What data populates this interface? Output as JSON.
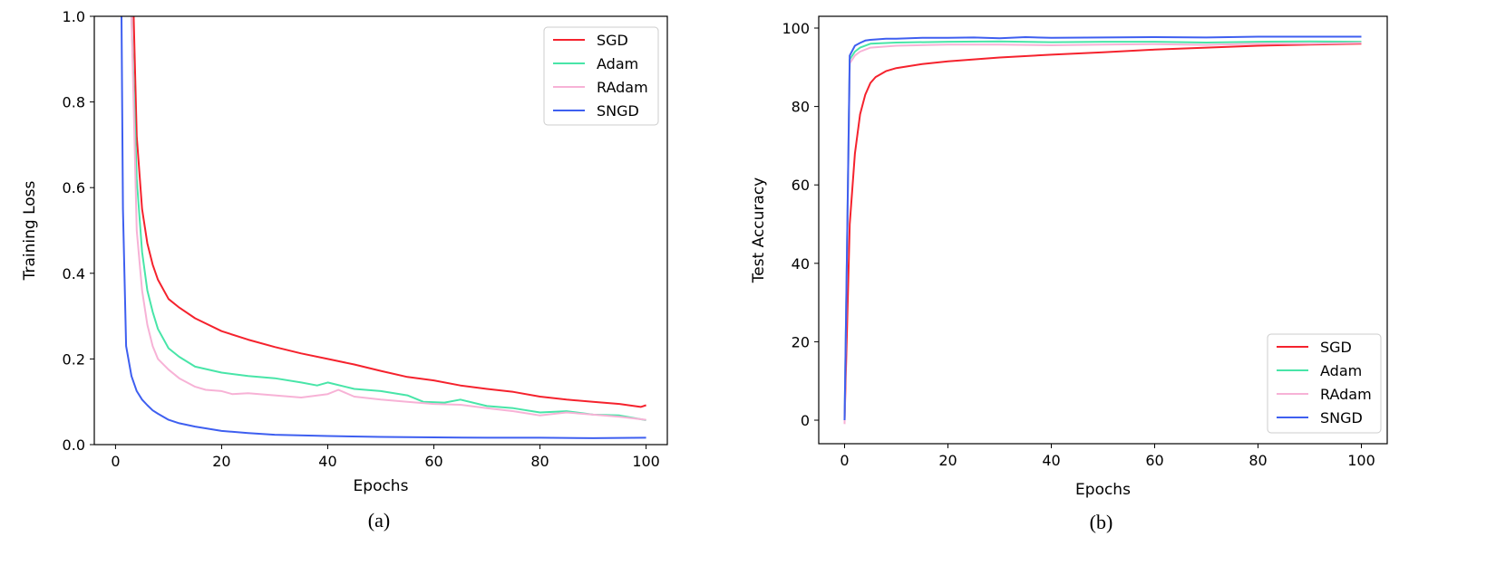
{
  "colors": {
    "SGD": "#f5222d",
    "Adam": "#48e5a8",
    "RAdam": "#f7b2d6",
    "SNGD": "#3e5ff0"
  },
  "chart_data": [
    {
      "type": "line",
      "panel_label": "(a)",
      "xlabel": "Epochs",
      "ylabel": "Training Loss",
      "xlim": [
        -4,
        104
      ],
      "ylim": [
        0.0,
        1.0
      ],
      "xticks": [
        0,
        20,
        40,
        60,
        80,
        100
      ],
      "yticks": [
        0.0,
        0.2,
        0.4,
        0.6,
        0.8,
        1.0
      ],
      "xtick_labels": [
        "0",
        "20",
        "40",
        "60",
        "80",
        "100"
      ],
      "ytick_labels": [
        "0.0",
        "0.2",
        "0.4",
        "0.6",
        "0.8",
        "1.0"
      ],
      "legend_position": "top-right",
      "series": [
        {
          "name": "SGD",
          "x": [
            3,
            4,
            5,
            6,
            7,
            8,
            10,
            12,
            15,
            20,
            25,
            30,
            35,
            40,
            45,
            50,
            55,
            60,
            65,
            70,
            75,
            80,
            85,
            90,
            95,
            99,
            100
          ],
          "y": [
            1.2,
            0.72,
            0.55,
            0.47,
            0.42,
            0.385,
            0.34,
            0.32,
            0.295,
            0.265,
            0.245,
            0.228,
            0.213,
            0.2,
            0.187,
            0.172,
            0.158,
            0.15,
            0.138,
            0.13,
            0.123,
            0.112,
            0.105,
            0.1,
            0.095,
            0.088,
            0.092
          ]
        },
        {
          "name": "Adam",
          "x": [
            3,
            4,
            5,
            6,
            7,
            8,
            10,
            12,
            15,
            20,
            25,
            30,
            35,
            38,
            40,
            45,
            50,
            55,
            58,
            62,
            65,
            70,
            75,
            80,
            85,
            90,
            95,
            100
          ],
          "y": [
            1.0,
            0.62,
            0.45,
            0.36,
            0.31,
            0.27,
            0.225,
            0.205,
            0.182,
            0.168,
            0.16,
            0.155,
            0.145,
            0.138,
            0.145,
            0.13,
            0.125,
            0.115,
            0.1,
            0.098,
            0.105,
            0.09,
            0.085,
            0.075,
            0.078,
            0.07,
            0.068,
            0.057
          ]
        },
        {
          "name": "RAdam",
          "x": [
            3,
            4,
            5,
            6,
            7,
            8,
            10,
            12,
            15,
            17,
            20,
            22,
            25,
            30,
            35,
            40,
            42,
            45,
            50,
            55,
            60,
            65,
            70,
            75,
            80,
            85,
            90,
            95,
            100
          ],
          "y": [
            1.0,
            0.5,
            0.36,
            0.28,
            0.23,
            0.2,
            0.175,
            0.155,
            0.135,
            0.128,
            0.125,
            0.118,
            0.12,
            0.115,
            0.11,
            0.118,
            0.128,
            0.112,
            0.105,
            0.1,
            0.095,
            0.093,
            0.085,
            0.078,
            0.068,
            0.075,
            0.07,
            0.065,
            0.058
          ]
        },
        {
          "name": "SNGD",
          "x": [
            1,
            1.4,
            2,
            3,
            4,
            5,
            6,
            7,
            8,
            10,
            12,
            15,
            20,
            25,
            30,
            40,
            50,
            60,
            70,
            80,
            90,
            100
          ],
          "y": [
            1.2,
            0.55,
            0.23,
            0.16,
            0.125,
            0.105,
            0.092,
            0.08,
            0.072,
            0.058,
            0.05,
            0.042,
            0.032,
            0.027,
            0.023,
            0.02,
            0.018,
            0.017,
            0.016,
            0.016,
            0.015,
            0.016
          ]
        }
      ]
    },
    {
      "type": "line",
      "panel_label": "(b)",
      "xlabel": "Epochs",
      "ylabel": "Test Accuracy",
      "xlim": [
        -5,
        105
      ],
      "ylim": [
        -6,
        103
      ],
      "xticks": [
        0,
        20,
        40,
        60,
        80,
        100
      ],
      "yticks": [
        0,
        20,
        40,
        60,
        80,
        100
      ],
      "xtick_labels": [
        "0",
        "20",
        "40",
        "60",
        "80",
        "100"
      ],
      "ytick_labels": [
        "0",
        "20",
        "40",
        "60",
        "80",
        "100"
      ],
      "legend_position": "bottom-right",
      "series": [
        {
          "name": "SGD",
          "x": [
            0,
            0.5,
            1,
            2,
            3,
            4,
            5,
            6,
            8,
            10,
            15,
            20,
            30,
            40,
            50,
            60,
            70,
            80,
            90,
            100
          ],
          "y": [
            0,
            25,
            50,
            68,
            78,
            83,
            86,
            87.5,
            89,
            89.8,
            90.8,
            91.5,
            92.5,
            93.2,
            93.8,
            94.5,
            95,
            95.5,
            95.8,
            96
          ]
        },
        {
          "name": "Adam",
          "x": [
            0,
            1,
            2,
            3,
            5,
            10,
            20,
            30,
            40,
            50,
            60,
            70,
            80,
            90,
            100
          ],
          "y": [
            0,
            92,
            94,
            95,
            96,
            96.3,
            96.5,
            96.6,
            96.4,
            96.5,
            96.5,
            96.3,
            96.5,
            96.6,
            96.5
          ]
        },
        {
          "name": "RAdam",
          "x": [
            0,
            1,
            2,
            3,
            5,
            10,
            20,
            30,
            40,
            50,
            60,
            70,
            80,
            90,
            100
          ],
          "y": [
            -1,
            91,
            93,
            94,
            95,
            95.5,
            95.8,
            95.8,
            95.6,
            95.8,
            95.9,
            95.7,
            96,
            96,
            96.2
          ]
        },
        {
          "name": "SNGD",
          "x": [
            0,
            1,
            2,
            3,
            4,
            5,
            8,
            10,
            15,
            20,
            25,
            30,
            35,
            40,
            50,
            60,
            70,
            80,
            90,
            100
          ],
          "y": [
            0,
            93,
            95.5,
            96.2,
            96.8,
            97,
            97.3,
            97.3,
            97.5,
            97.5,
            97.6,
            97.4,
            97.7,
            97.5,
            97.6,
            97.7,
            97.6,
            97.8,
            97.8,
            97.8
          ]
        }
      ]
    }
  ]
}
